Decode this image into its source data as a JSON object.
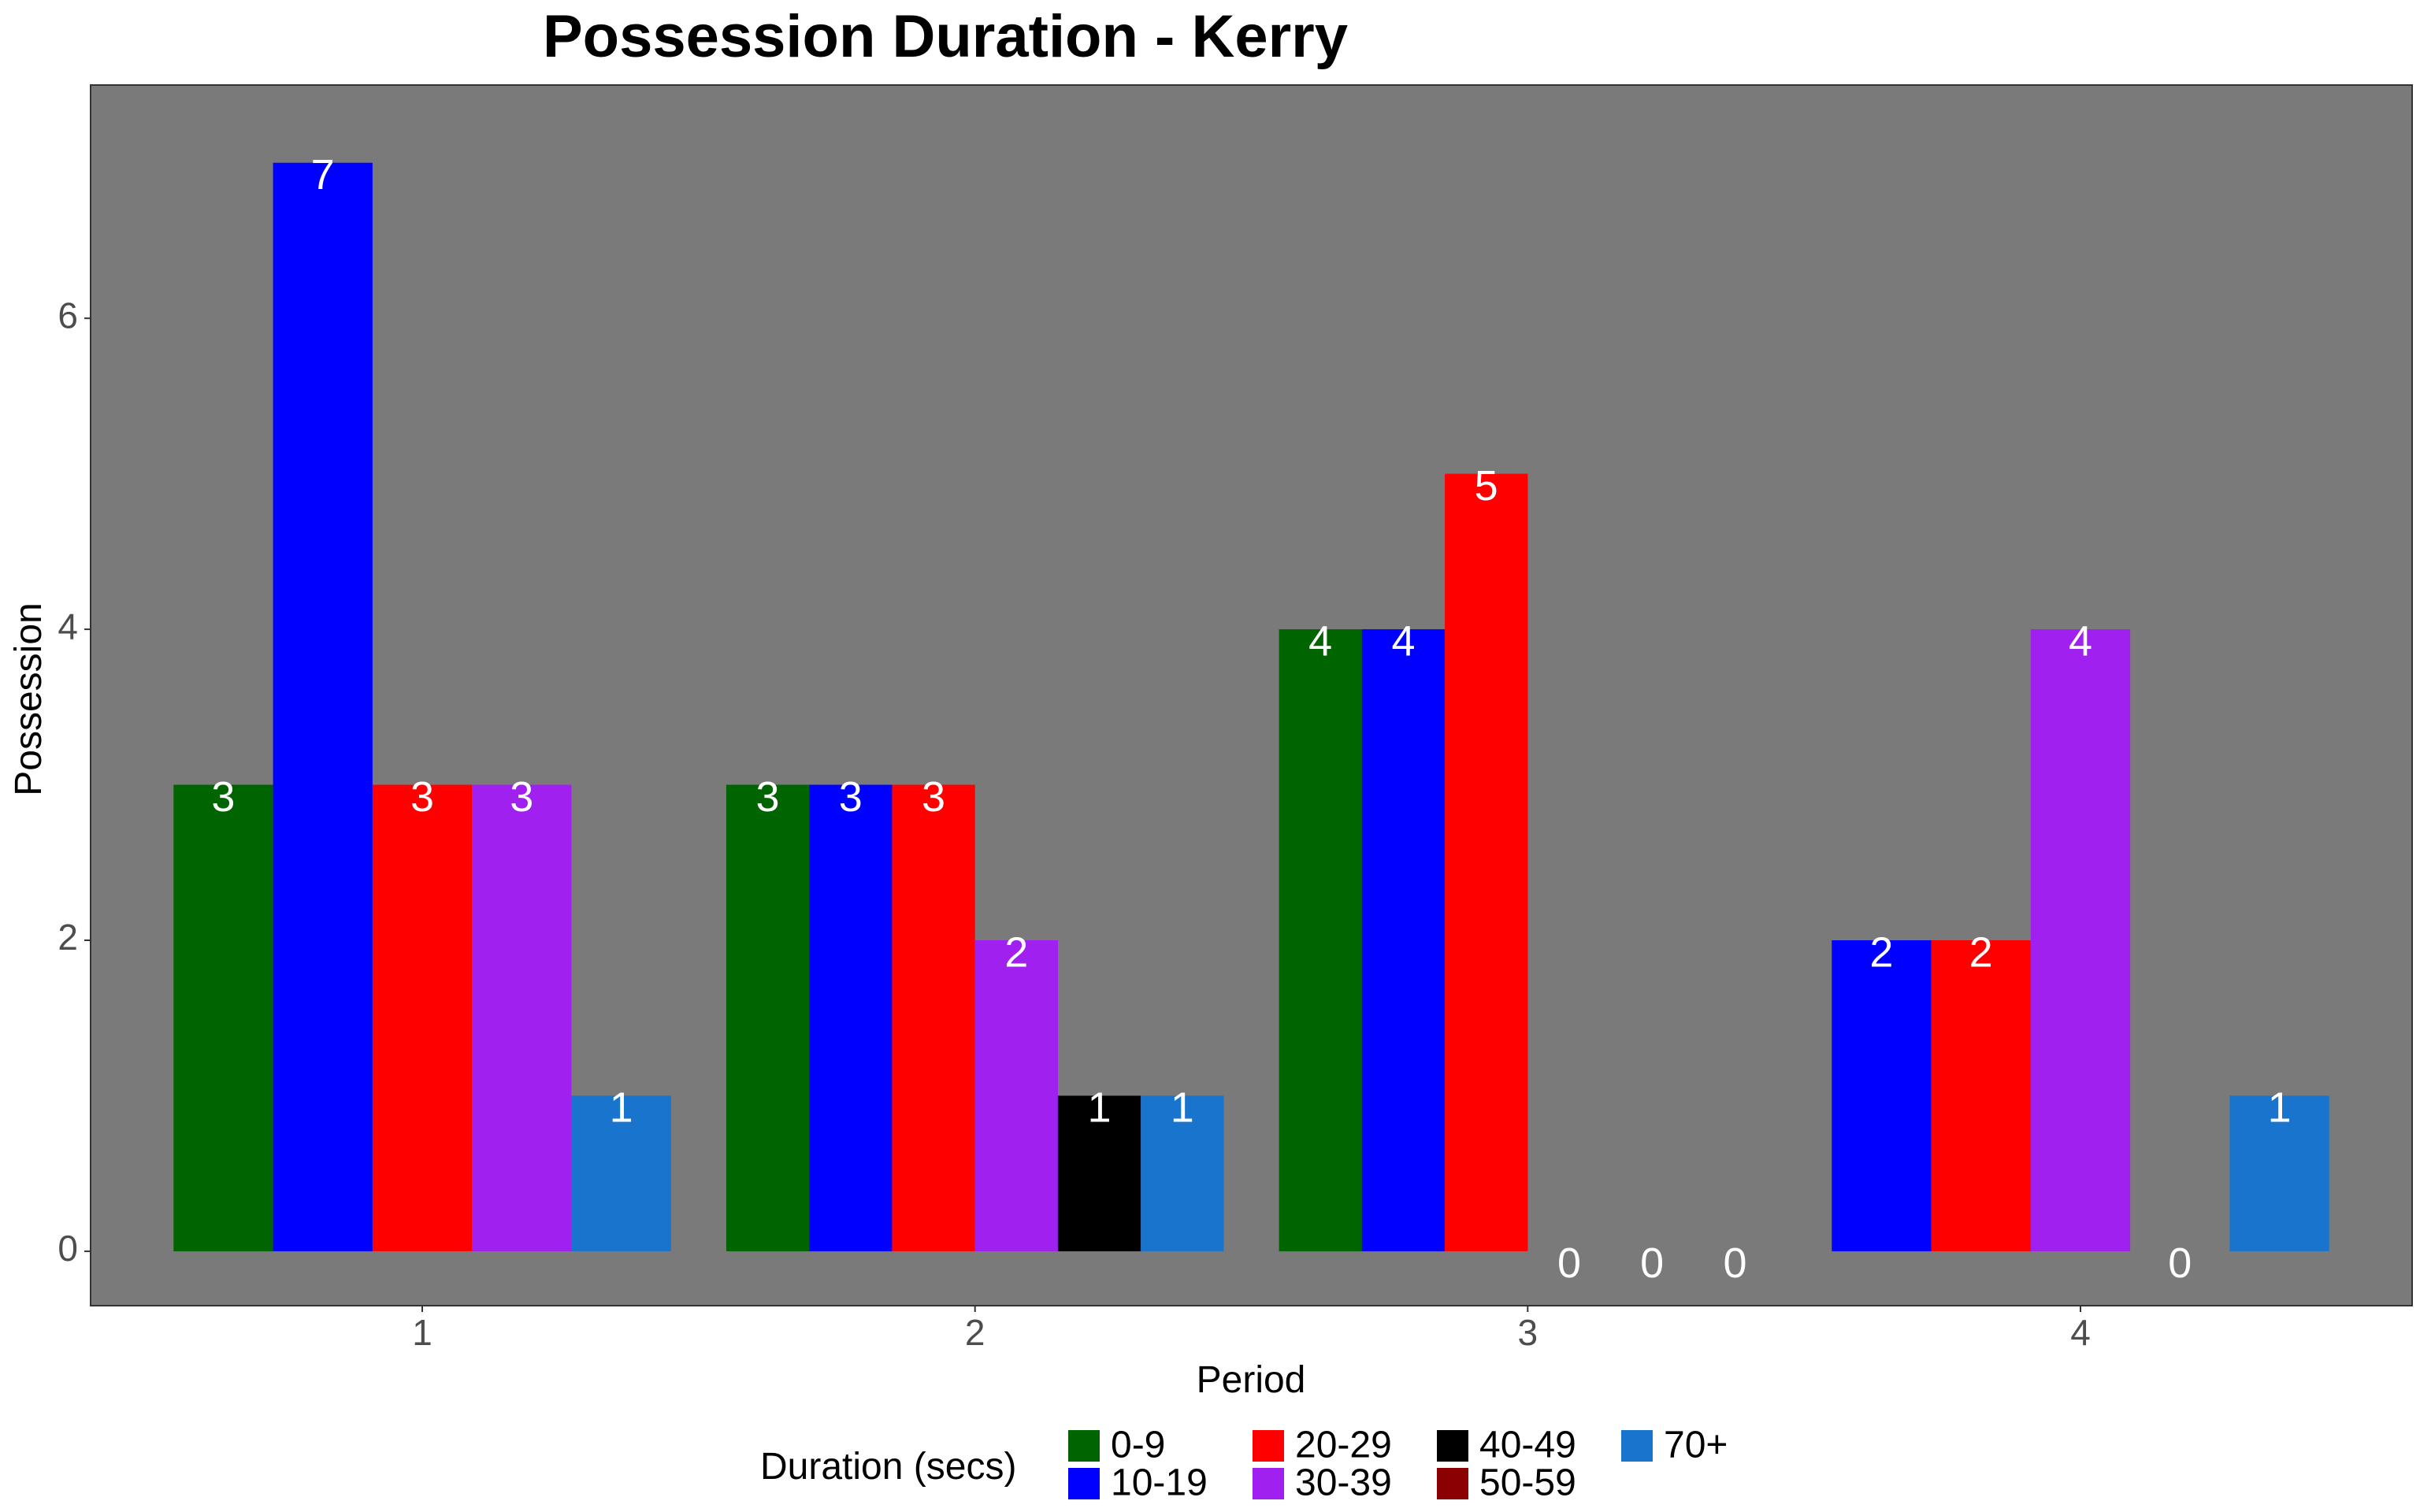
{
  "chart_data": {
    "type": "bar",
    "title": "Possession Duration - Kerry",
    "xlabel": "Period",
    "ylabel": "Possession",
    "categories": [
      "1",
      "2",
      "3",
      "4"
    ],
    "ylim": [
      -0.35,
      7.5
    ],
    "yticks": [
      0,
      2,
      4,
      6
    ],
    "grid": false,
    "legend": {
      "title": "Duration (secs)",
      "position": "bottom"
    },
    "series": [
      {
        "name": "0-9",
        "color": "#006400",
        "values": [
          3,
          3,
          4,
          null
        ]
      },
      {
        "name": "10-19",
        "color": "#0000FF",
        "values": [
          7,
          3,
          4,
          2
        ]
      },
      {
        "name": "20-29",
        "color": "#FF0000",
        "values": [
          3,
          3,
          5,
          2
        ]
      },
      {
        "name": "30-39",
        "color": "#A020F0",
        "values": [
          3,
          2,
          null,
          4
        ]
      },
      {
        "name": "40-49",
        "color": "#000000",
        "values": [
          null,
          1,
          0,
          null
        ]
      },
      {
        "name": "50-59",
        "color": "#8B0000",
        "values": [
          null,
          null,
          0,
          0
        ]
      },
      {
        "name": "70+",
        "color": "#1874CD",
        "values": [
          1,
          1,
          0,
          1
        ]
      }
    ],
    "colors": {
      "panel": "#7a7a7a",
      "panel_border": "#333333",
      "tick": "#333333"
    }
  }
}
